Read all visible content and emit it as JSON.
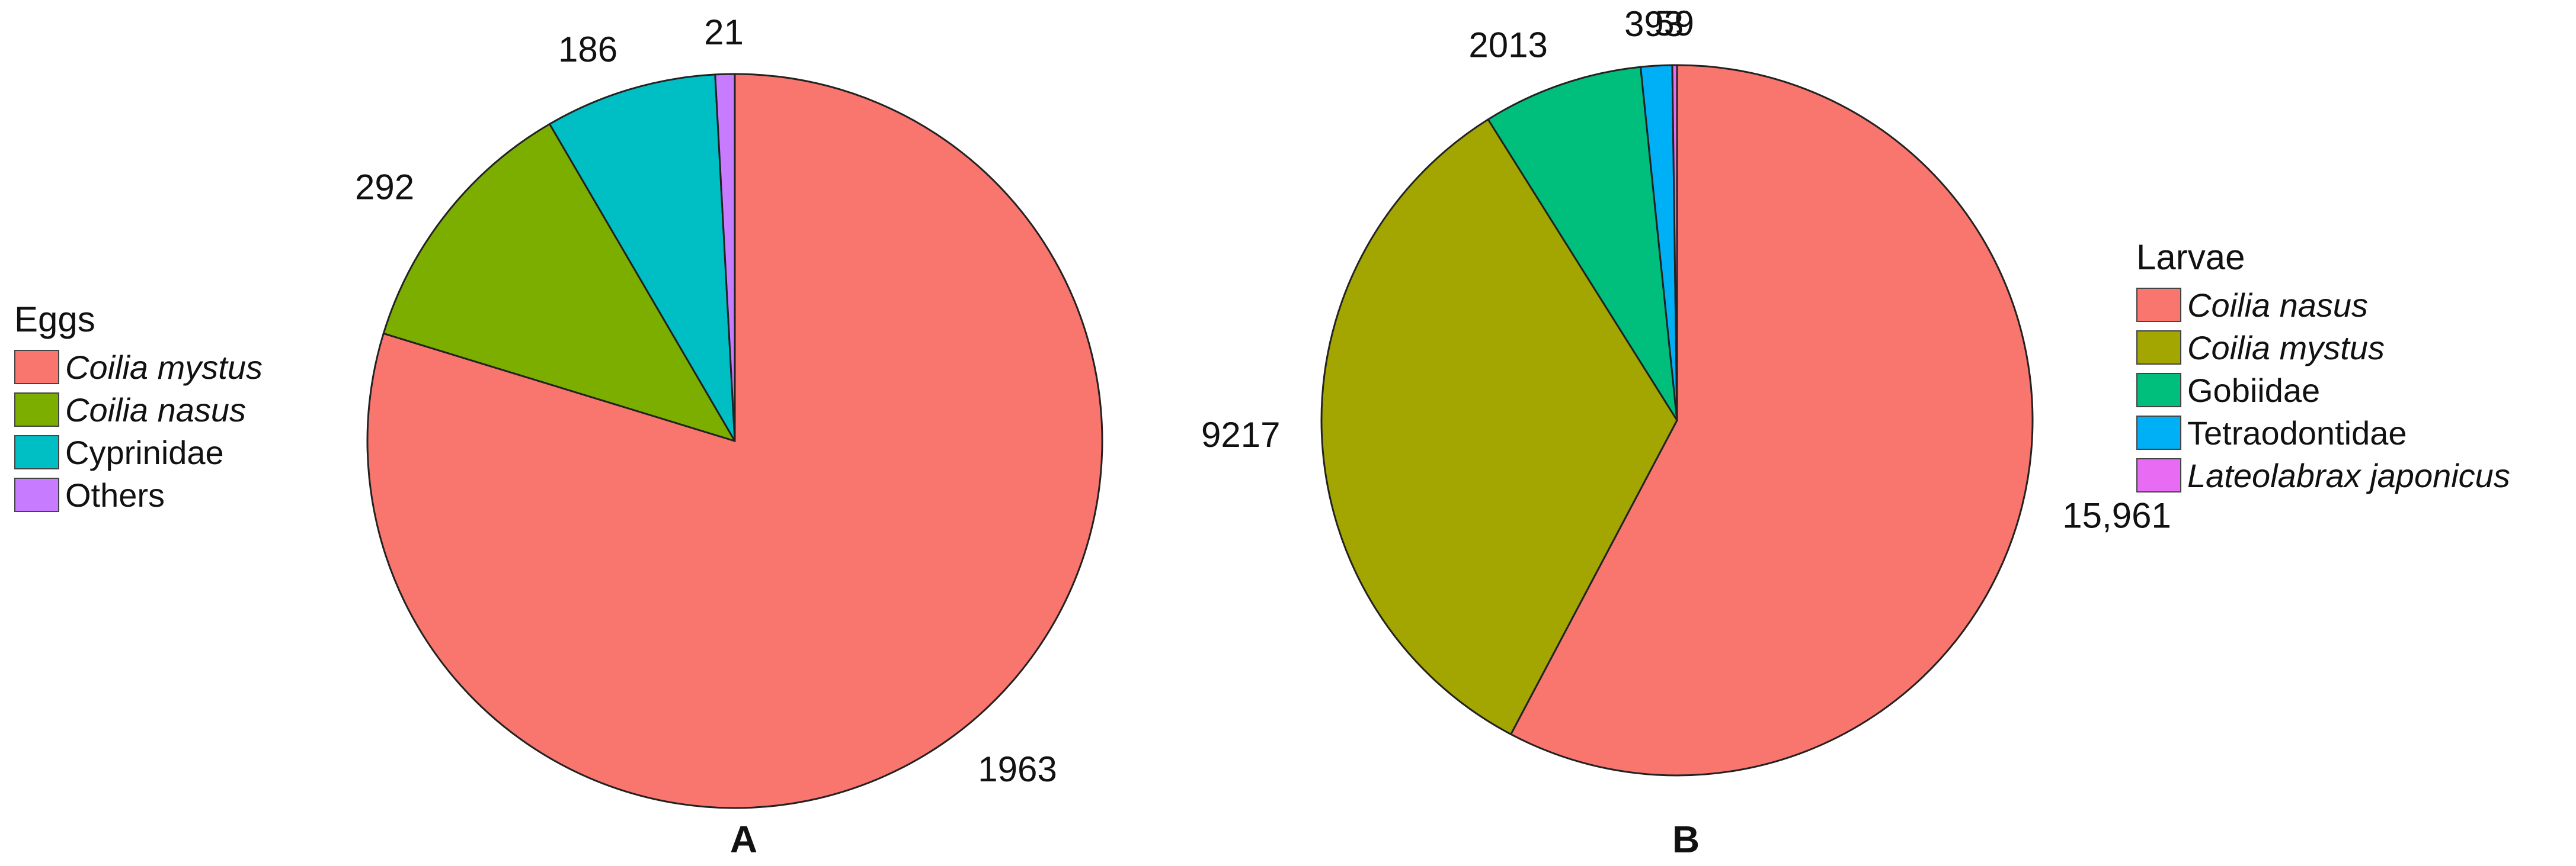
{
  "chart_data": [
    {
      "type": "pie",
      "panel_label": "A",
      "legend_title": "Eggs",
      "legend_placement": "left",
      "slices": [
        {
          "label": "Coilia mystus",
          "value": 1963,
          "value_label": "1963",
          "color": "#F8766D",
          "italic": true
        },
        {
          "label": "Coilia nasus",
          "value": 292,
          "value_label": "292",
          "color": "#7CAE00",
          "italic": true
        },
        {
          "label": "Cyprinidae",
          "value": 186,
          "value_label": "186",
          "color": "#00BFC4",
          "italic": false
        },
        {
          "label": "Others",
          "value": 21,
          "value_label": "21",
          "color": "#C77CFF",
          "italic": false
        }
      ]
    },
    {
      "type": "pie",
      "panel_label": "B",
      "legend_title": "Larvae",
      "legend_placement": "right",
      "slices": [
        {
          "label": "Coilia nasus",
          "value": 15961,
          "value_label": "15,961",
          "color": "#F8766D",
          "italic": true
        },
        {
          "label": "Coilia mystus",
          "value": 9217,
          "value_label": "9217",
          "color": "#A3A500",
          "italic": true
        },
        {
          "label": "Gobiidae",
          "value": 2013,
          "value_label": "2013",
          "color": "#00BF7D",
          "italic": false
        },
        {
          "label": "Tetraodontidae",
          "value": 393,
          "value_label": "393",
          "color": "#00B0F6",
          "italic": false
        },
        {
          "label": "Lateolabrax japonicus",
          "value": 59,
          "value_label": "59",
          "color": "#E76BF3",
          "italic": true
        }
      ]
    }
  ]
}
